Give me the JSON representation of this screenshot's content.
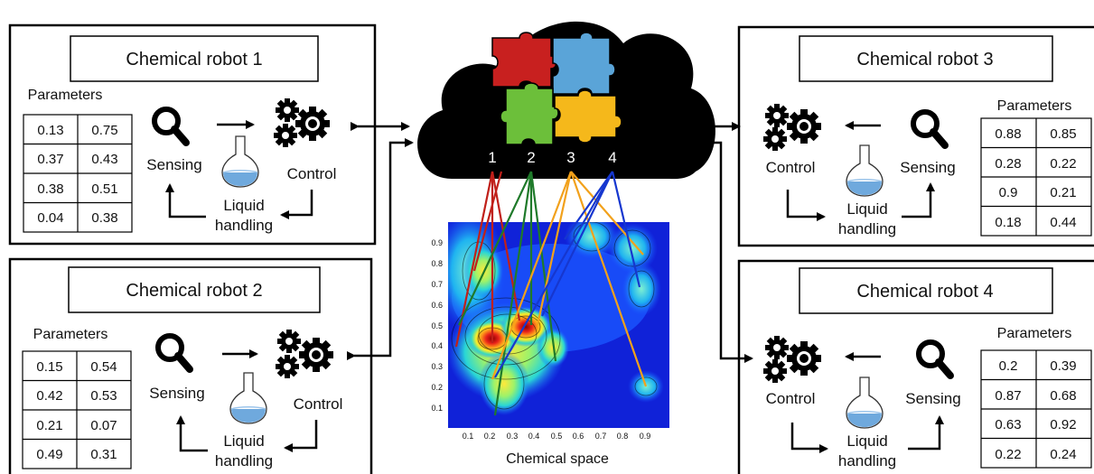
{
  "robots": [
    {
      "title": "Chemical robot 1",
      "params_label": "Parameters",
      "params": [
        [
          "0.13",
          "0.75"
        ],
        [
          "0.37",
          "0.43"
        ],
        [
          "0.38",
          "0.51"
        ],
        [
          "0.04",
          "0.38"
        ]
      ],
      "sensing": "Sensing",
      "control": "Control",
      "liquid_line1": "Liquid",
      "liquid_line2": "handling"
    },
    {
      "title": "Chemical robot 2",
      "params_label": "Parameters",
      "params": [
        [
          "0.15",
          "0.54"
        ],
        [
          "0.42",
          "0.53"
        ],
        [
          "0.21",
          "0.07"
        ],
        [
          "0.49",
          "0.31"
        ]
      ],
      "sensing": "Sensing",
      "control": "Control",
      "liquid_line1": "Liquid",
      "liquid_line2": "handling"
    },
    {
      "title": "Chemical robot 3",
      "params_label": "Parameters",
      "params": [
        [
          "0.88",
          "0.85"
        ],
        [
          "0.28",
          "0.22"
        ],
        [
          "0.9",
          "0.21"
        ],
        [
          "0.18",
          "0.44"
        ]
      ],
      "sensing": "Sensing",
      "control": "Control",
      "liquid_line1": "Liquid",
      "liquid_line2": "handling"
    },
    {
      "title": "Chemical robot 4",
      "params_label": "Parameters",
      "params": [
        [
          "0.2",
          "0.39"
        ],
        [
          "0.87",
          "0.68"
        ],
        [
          "0.63",
          "0.92"
        ],
        [
          "0.22",
          "0.24"
        ]
      ],
      "sensing": "Sensing",
      "control": "Control",
      "liquid_line1": "Liquid",
      "liquid_line2": "handling"
    }
  ],
  "cloud": {
    "numbers": [
      "1",
      "2",
      "3",
      "4"
    ],
    "puzzle_colors": [
      "#c8201f",
      "#5aa4d8",
      "#6cbf3a",
      "#f5b81b"
    ]
  },
  "map": {
    "xaxis_label": "Chemical space",
    "xticks": [
      "0.1",
      "0.2",
      "0.3",
      "0.4",
      "0.5",
      "0.6",
      "0.7",
      "0.8",
      "0.9"
    ],
    "yticks": [
      "0.9",
      "0.8",
      "0.7",
      "0.6",
      "0.5",
      "0.4",
      "0.3",
      "0.2",
      "0.1"
    ]
  },
  "line_colors": [
    "#c0201a",
    "#1f7a2a",
    "#f2a11b",
    "#1637cf"
  ],
  "icons": {
    "sensing": "magnifier-icon",
    "control": "gears-icon",
    "liquid": "flask-icon"
  }
}
